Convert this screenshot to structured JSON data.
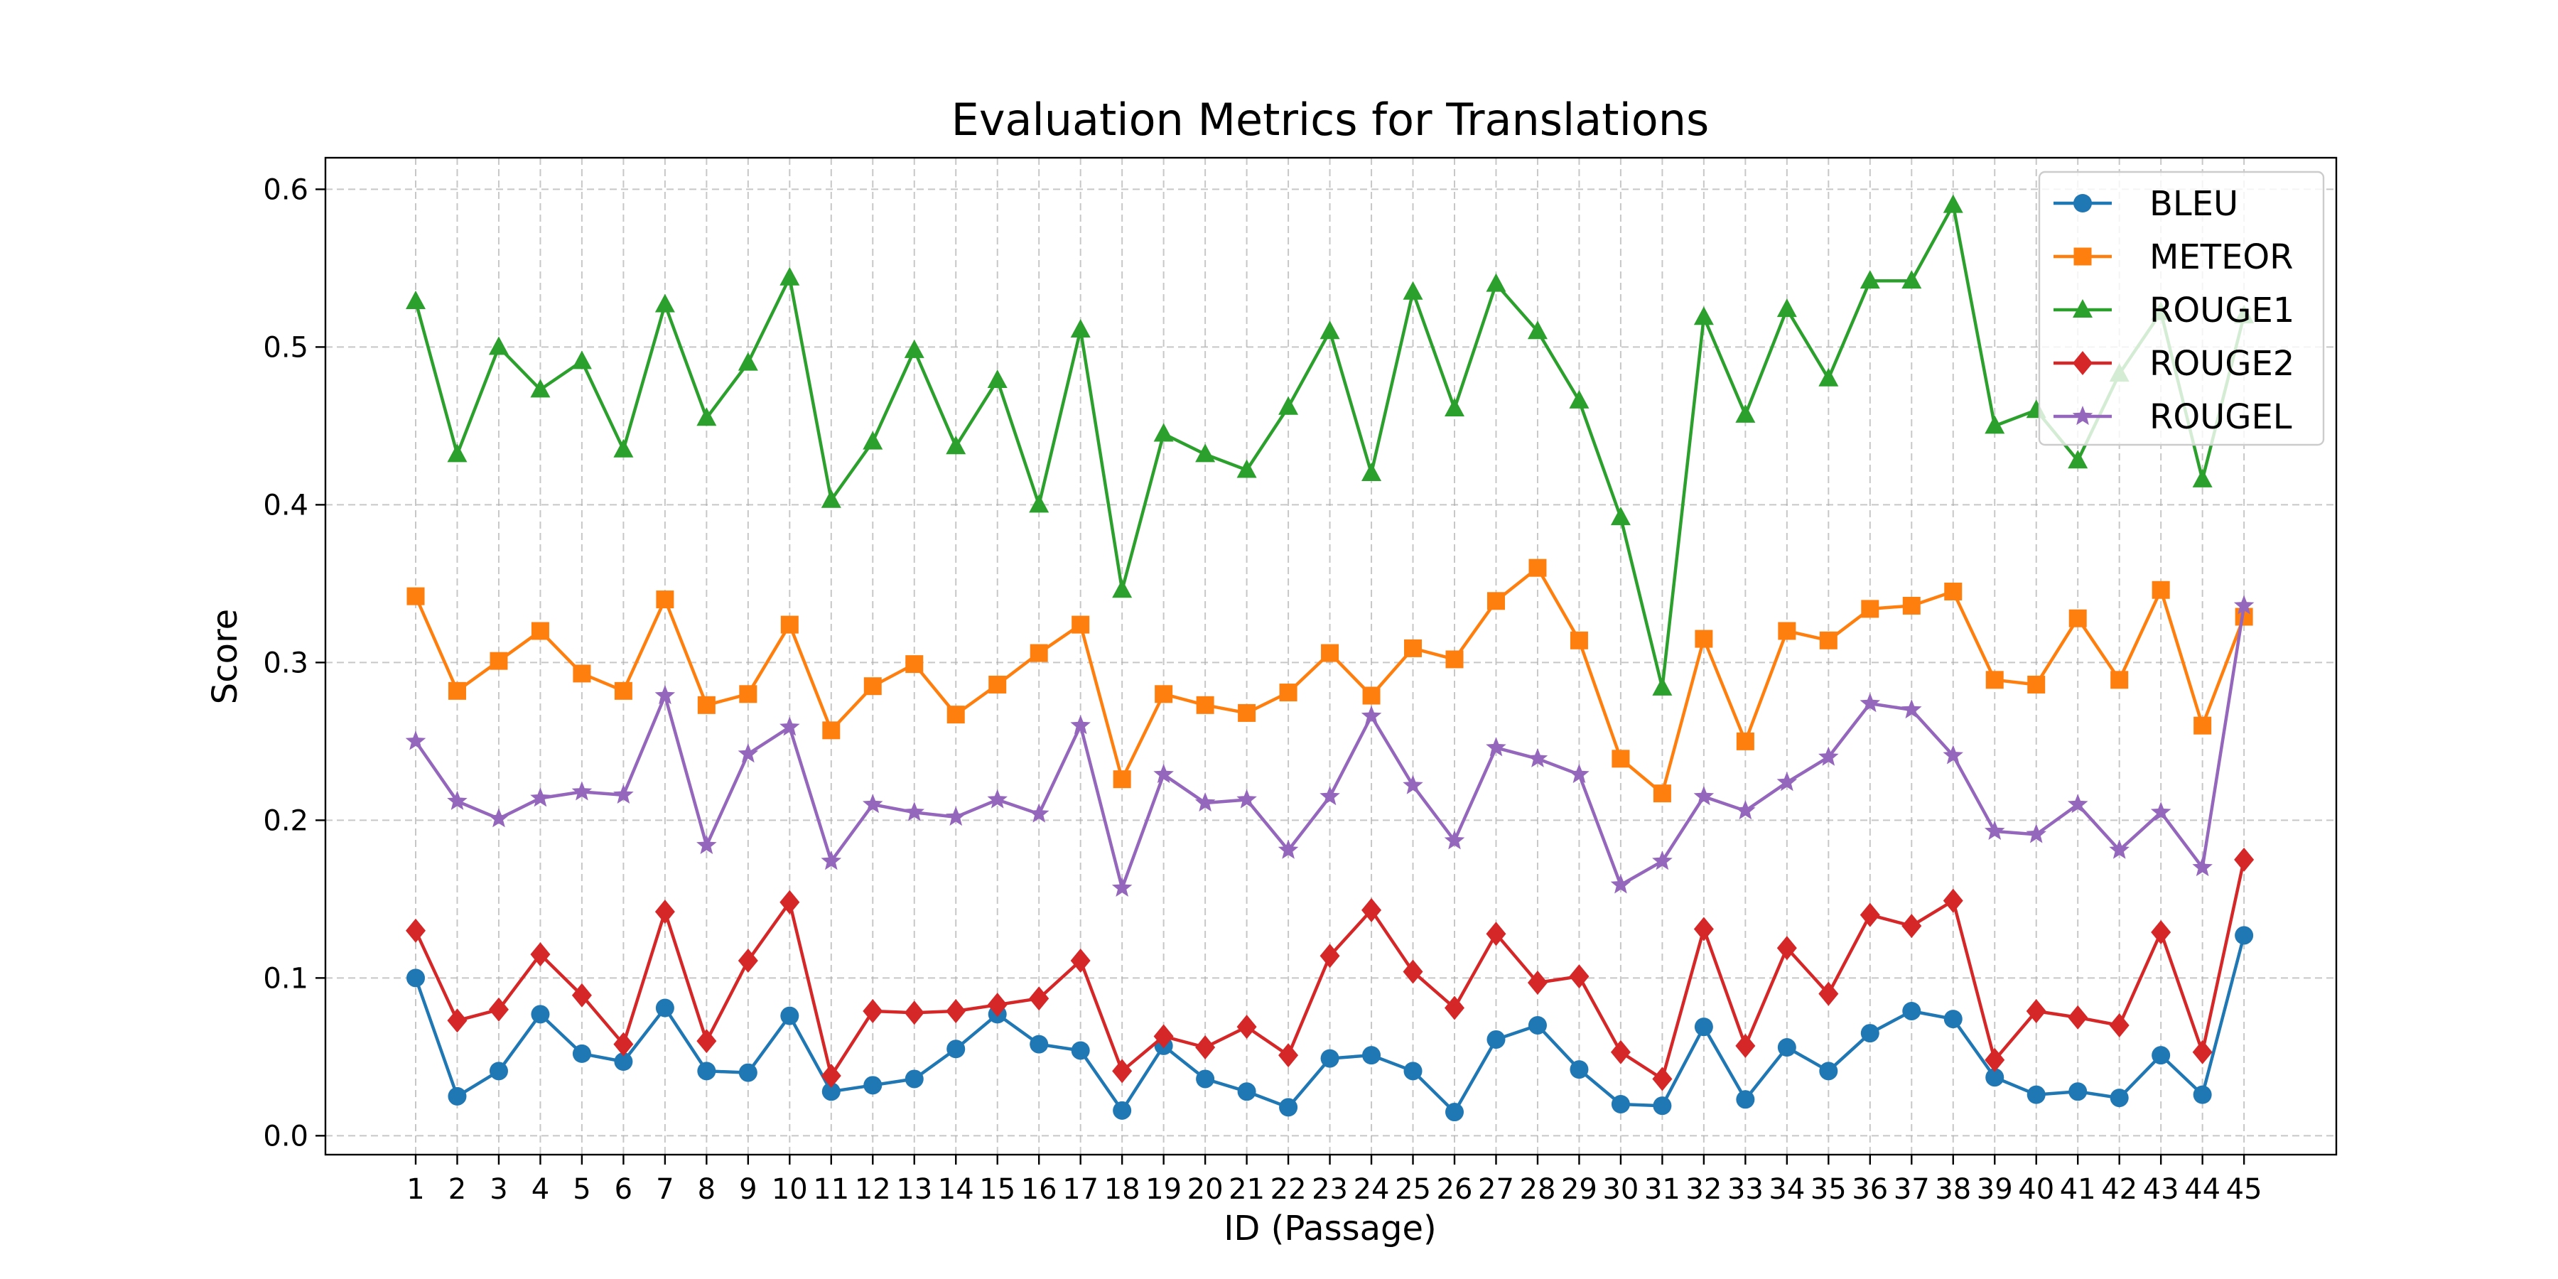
{
  "chart_data": {
    "type": "line",
    "title": "Evaluation Metrics for Translations",
    "xlabel": "ID (Passage)",
    "ylabel": "Score",
    "x": [
      1,
      2,
      3,
      4,
      5,
      6,
      7,
      8,
      9,
      10,
      11,
      12,
      13,
      14,
      15,
      16,
      17,
      18,
      19,
      20,
      21,
      22,
      23,
      24,
      25,
      26,
      27,
      28,
      29,
      30,
      31,
      32,
      33,
      34,
      35,
      36,
      37,
      38,
      39,
      40,
      41,
      42,
      43,
      44,
      45
    ],
    "ylim": [
      -0.012,
      0.62
    ],
    "yticks": [
      0.0,
      0.1,
      0.2,
      0.3,
      0.4,
      0.5,
      0.6
    ],
    "ytick_labels": [
      "0.0",
      "0.1",
      "0.2",
      "0.3",
      "0.4",
      "0.5",
      "0.6"
    ],
    "grid": true,
    "legend_position": "top-right",
    "series": [
      {
        "name": "BLEU",
        "color": "#1f77b4",
        "marker": "circle",
        "values": [
          0.1,
          0.025,
          0.041,
          0.077,
          0.052,
          0.047,
          0.081,
          0.041,
          0.04,
          0.076,
          0.028,
          0.032,
          0.036,
          0.055,
          0.077,
          0.058,
          0.054,
          0.016,
          0.057,
          0.036,
          0.028,
          0.018,
          0.049,
          0.051,
          0.041,
          0.015,
          0.061,
          0.07,
          0.042,
          0.02,
          0.019,
          0.069,
          0.023,
          0.056,
          0.041,
          0.065,
          0.079,
          0.074,
          0.037,
          0.026,
          0.028,
          0.024,
          0.051,
          0.026,
          0.127
        ]
      },
      {
        "name": "METEOR",
        "color": "#ff7f0e",
        "marker": "square",
        "values": [
          0.342,
          0.282,
          0.301,
          0.32,
          0.293,
          0.282,
          0.34,
          0.273,
          0.28,
          0.324,
          0.257,
          0.285,
          0.299,
          0.267,
          0.286,
          0.306,
          0.324,
          0.226,
          0.28,
          0.273,
          0.268,
          0.281,
          0.306,
          0.279,
          0.309,
          0.302,
          0.339,
          0.36,
          0.314,
          0.239,
          0.217,
          0.315,
          0.25,
          0.32,
          0.314,
          0.334,
          0.336,
          0.345,
          0.289,
          0.286,
          0.328,
          0.289,
          0.346,
          0.26,
          0.329
        ]
      },
      {
        "name": "ROUGE1",
        "color": "#2ca02c",
        "marker": "triangle",
        "values": [
          0.529,
          0.432,
          0.5,
          0.473,
          0.491,
          0.435,
          0.527,
          0.455,
          0.49,
          0.544,
          0.403,
          0.44,
          0.498,
          0.437,
          0.479,
          0.4,
          0.511,
          0.346,
          0.445,
          0.432,
          0.422,
          0.462,
          0.51,
          0.42,
          0.535,
          0.461,
          0.54,
          0.51,
          0.466,
          0.392,
          0.284,
          0.519,
          0.457,
          0.524,
          0.48,
          0.542,
          0.542,
          0.59,
          0.45,
          0.46,
          0.428,
          0.483,
          0.522,
          0.416,
          0.52
        ]
      },
      {
        "name": "ROUGE2",
        "color": "#d62728",
        "marker": "diamond",
        "values": [
          0.13,
          0.073,
          0.08,
          0.115,
          0.089,
          0.058,
          0.142,
          0.06,
          0.111,
          0.148,
          0.038,
          0.079,
          0.078,
          0.079,
          0.083,
          0.087,
          0.111,
          0.041,
          0.063,
          0.056,
          0.069,
          0.051,
          0.114,
          0.143,
          0.104,
          0.081,
          0.128,
          0.097,
          0.101,
          0.053,
          0.036,
          0.131,
          0.057,
          0.119,
          0.09,
          0.14,
          0.133,
          0.149,
          0.048,
          0.079,
          0.075,
          0.07,
          0.129,
          0.053,
          0.175
        ]
      },
      {
        "name": "ROUGEL",
        "color": "#9467bd",
        "marker": "star",
        "values": [
          0.25,
          0.212,
          0.201,
          0.214,
          0.218,
          0.216,
          0.279,
          0.184,
          0.242,
          0.259,
          0.174,
          0.21,
          0.205,
          0.202,
          0.213,
          0.204,
          0.26,
          0.157,
          0.229,
          0.211,
          0.213,
          0.181,
          0.215,
          0.266,
          0.222,
          0.187,
          0.246,
          0.239,
          0.229,
          0.159,
          0.174,
          0.215,
          0.206,
          0.224,
          0.24,
          0.274,
          0.27,
          0.241,
          0.193,
          0.191,
          0.21,
          0.181,
          0.205,
          0.17,
          0.336
        ]
      }
    ]
  }
}
